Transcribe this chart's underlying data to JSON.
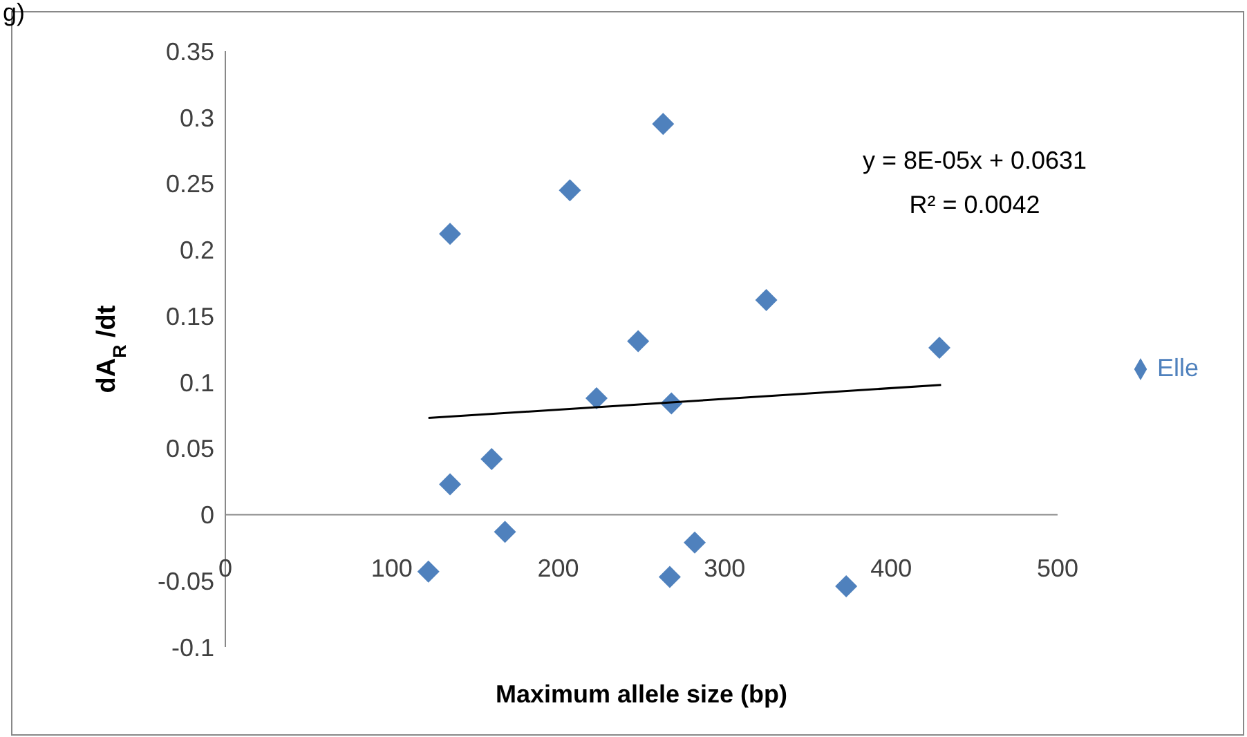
{
  "chart_data": {
    "type": "scatter",
    "xlabel": "Maximum allele size (bp)",
    "ylabel": "dA$_{R}$/dt",
    "xlim": [
      0,
      500
    ],
    "xticks": [
      0,
      100,
      200,
      300,
      400,
      500
    ],
    "ylim": [
      -0.1,
      0.35
    ],
    "yticks": [
      -0.1,
      -0.05,
      0,
      0.05,
      0.1,
      0.15,
      0.2,
      0.25,
      0.3,
      0.35
    ],
    "grid": false,
    "legend": "right",
    "annotations": [
      "g)",
      "y = 8E-05x + 0.0631",
      "R² = 0.0042"
    ],
    "series": [
      {
        "name": "Elle",
        "marker": "diamond",
        "color": "#4f81bd",
        "x": [
          122,
          135,
          135,
          168,
          160,
          207,
          223,
          248,
          263,
          268,
          267,
          282,
          325,
          373,
          429
        ],
        "values": [
          -0.043,
          0.212,
          0.023,
          -0.013,
          0.042,
          0.245,
          0.088,
          0.131,
          0.295,
          0.084,
          -0.047,
          -0.021,
          0.162,
          -0.054,
          0.126
        ]
      },
      {
        "type": "line",
        "color": "#000000",
        "x": [
          122,
          430
        ],
        "values": [
          0.073,
          0.098
        ]
      }
    ]
  }
}
